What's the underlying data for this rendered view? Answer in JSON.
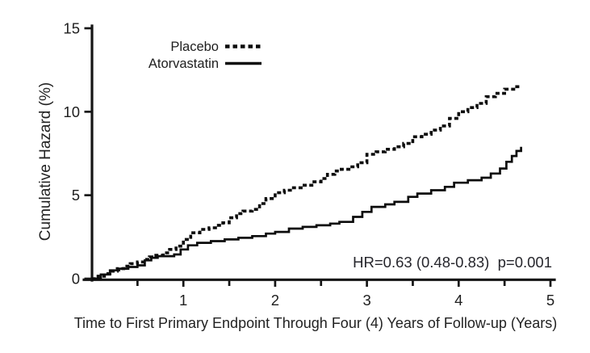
{
  "chart_data": {
    "type": "line",
    "subtype": "step-cumulative-hazard",
    "title": "",
    "xlabel": "Time to First Primary Endpoint Through Four (4) Years of Follow-up (Years)",
    "ylabel": "Cumulative Hazard (%)",
    "xlim": [
      0,
      5
    ],
    "ylim": [
      0,
      15
    ],
    "x_ticks": [
      1,
      2,
      3,
      4,
      5
    ],
    "x_minor_ticks": [
      0.5,
      1.5,
      2.5,
      3.5,
      4.5
    ],
    "y_ticks": [
      0,
      5,
      10,
      15
    ],
    "grid": false,
    "legend_position": "inside-top-left",
    "ink_color": "#0c0c0c",
    "annotation": {
      "text": "HR=0.63 (0.48-0.83)  p=0.001",
      "anchor": "bottom-right"
    },
    "series": [
      {
        "name": "Placebo",
        "style": "dashed",
        "points": [
          [
            0,
            0
          ],
          [
            0.07,
            0.15
          ],
          [
            0.14,
            0.3
          ],
          [
            0.2,
            0.45
          ],
          [
            0.28,
            0.6
          ],
          [
            0.35,
            0.75
          ],
          [
            0.42,
            0.9
          ],
          [
            0.5,
            1.0
          ],
          [
            0.57,
            1.15
          ],
          [
            0.63,
            1.3
          ],
          [
            0.7,
            1.4
          ],
          [
            0.78,
            1.55
          ],
          [
            0.85,
            1.75
          ],
          [
            0.92,
            1.95
          ],
          [
            1.0,
            2.35
          ],
          [
            1.08,
            2.75
          ],
          [
            1.18,
            2.95
          ],
          [
            1.28,
            3.05
          ],
          [
            1.35,
            3.2
          ],
          [
            1.43,
            3.35
          ],
          [
            1.5,
            3.65
          ],
          [
            1.58,
            3.9
          ],
          [
            1.65,
            4.05
          ],
          [
            1.75,
            4.15
          ],
          [
            1.83,
            4.5
          ],
          [
            1.9,
            4.8
          ],
          [
            2.0,
            5.15
          ],
          [
            2.1,
            5.3
          ],
          [
            2.2,
            5.45
          ],
          [
            2.3,
            5.6
          ],
          [
            2.4,
            5.8
          ],
          [
            2.5,
            6.0
          ],
          [
            2.57,
            6.25
          ],
          [
            2.65,
            6.45
          ],
          [
            2.72,
            6.55
          ],
          [
            2.82,
            6.7
          ],
          [
            2.9,
            6.95
          ],
          [
            3.0,
            7.45
          ],
          [
            3.1,
            7.6
          ],
          [
            3.2,
            7.75
          ],
          [
            3.3,
            7.9
          ],
          [
            3.4,
            8.1
          ],
          [
            3.5,
            8.5
          ],
          [
            3.6,
            8.65
          ],
          [
            3.7,
            8.9
          ],
          [
            3.8,
            9.15
          ],
          [
            3.9,
            9.6
          ],
          [
            4.0,
            10.0
          ],
          [
            4.1,
            10.25
          ],
          [
            4.2,
            10.5
          ],
          [
            4.3,
            10.9
          ],
          [
            4.4,
            11.1
          ],
          [
            4.5,
            11.35
          ],
          [
            4.6,
            11.5
          ],
          [
            4.67,
            11.55
          ]
        ]
      },
      {
        "name": "Atorvastatin",
        "style": "solid",
        "points": [
          [
            0,
            0
          ],
          [
            0.1,
            0.25
          ],
          [
            0.2,
            0.5
          ],
          [
            0.3,
            0.6
          ],
          [
            0.4,
            0.7
          ],
          [
            0.5,
            0.8
          ],
          [
            0.58,
            1.1
          ],
          [
            0.65,
            1.25
          ],
          [
            0.72,
            1.35
          ],
          [
            0.9,
            1.45
          ],
          [
            0.97,
            1.75
          ],
          [
            1.05,
            2.0
          ],
          [
            1.15,
            2.15
          ],
          [
            1.3,
            2.25
          ],
          [
            1.45,
            2.35
          ],
          [
            1.6,
            2.45
          ],
          [
            1.75,
            2.55
          ],
          [
            1.9,
            2.7
          ],
          [
            2.0,
            2.8
          ],
          [
            2.15,
            3.0
          ],
          [
            2.3,
            3.1
          ],
          [
            2.45,
            3.2
          ],
          [
            2.6,
            3.3
          ],
          [
            2.7,
            3.4
          ],
          [
            2.85,
            3.7
          ],
          [
            2.95,
            4.0
          ],
          [
            3.05,
            4.3
          ],
          [
            3.2,
            4.45
          ],
          [
            3.3,
            4.6
          ],
          [
            3.45,
            4.9
          ],
          [
            3.55,
            5.1
          ],
          [
            3.7,
            5.3
          ],
          [
            3.85,
            5.5
          ],
          [
            3.95,
            5.75
          ],
          [
            4.1,
            5.9
          ],
          [
            4.25,
            6.05
          ],
          [
            4.35,
            6.3
          ],
          [
            4.45,
            6.6
          ],
          [
            4.52,
            7.0
          ],
          [
            4.58,
            7.35
          ],
          [
            4.63,
            7.65
          ],
          [
            4.68,
            7.9
          ]
        ]
      }
    ]
  }
}
